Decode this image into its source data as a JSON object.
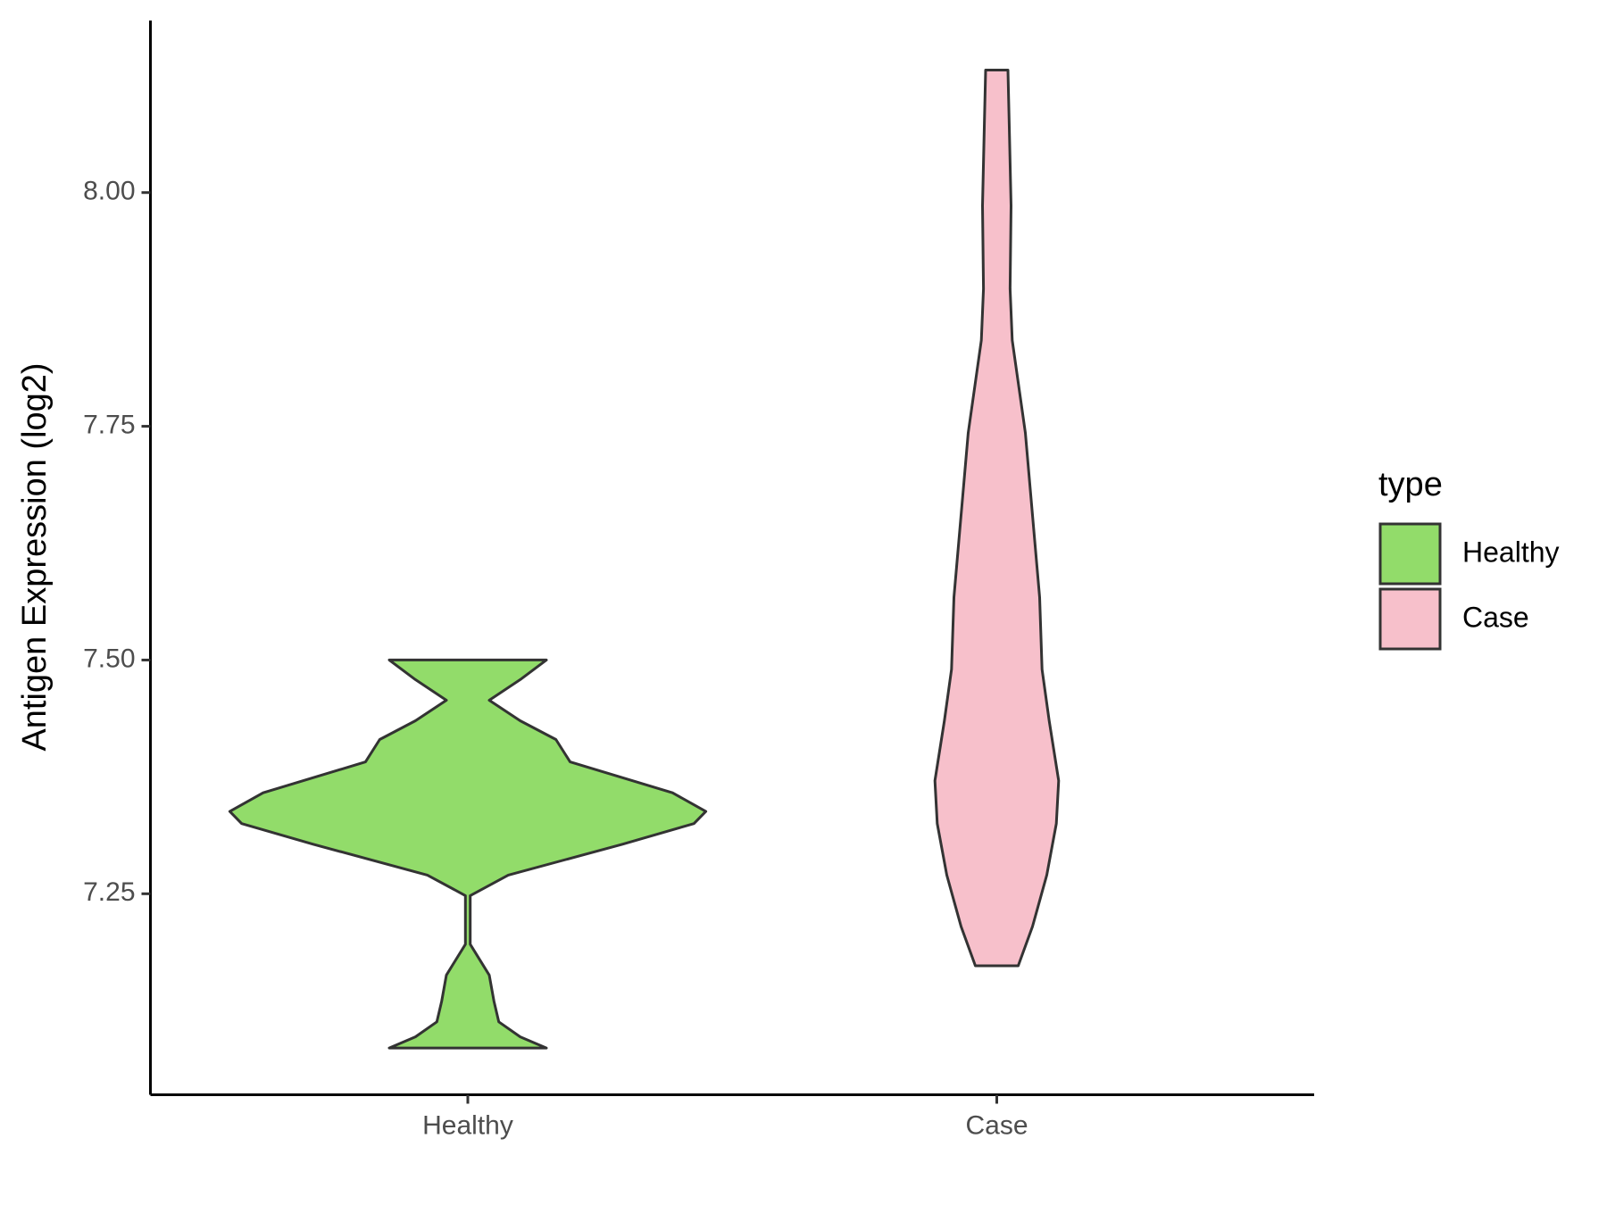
{
  "chart_data": {
    "type": "violin",
    "y_label": "Antigen Expression (log2)",
    "categories": [
      "Healthy",
      "Case"
    ],
    "legend_title": "type",
    "legend": "right",
    "ylim": [
      7.035,
      8.184
    ],
    "yticks": [
      {
        "value": 7.25,
        "label": "7.25"
      },
      {
        "value": 7.5,
        "label": "7.50"
      },
      {
        "value": 7.75,
        "label": "7.75"
      },
      {
        "value": 8,
        "label": "8.00"
      }
    ],
    "series": [
      {
        "name": "Healthy",
        "color": "#92dc6a",
        "y": [
          7.085,
          7.097,
          7.113,
          7.135,
          7.163,
          7.196,
          7.248,
          7.27,
          7.303,
          7.325,
          7.338,
          7.358,
          7.391,
          7.415,
          7.435,
          7.457,
          7.479,
          7.5
        ],
        "width": [
          0.33,
          0.22,
          0.13,
          0.11,
          0.09,
          0.01,
          0.01,
          0.17,
          0.65,
          0.95,
          1,
          0.86,
          0.43,
          0.37,
          0.22,
          0.09,
          0.22,
          0.33
        ]
      },
      {
        "name": "Case",
        "color": "#f7c0cb",
        "y": [
          7.173,
          7.215,
          7.27,
          7.325,
          7.371,
          7.435,
          7.49,
          7.567,
          7.655,
          7.743,
          7.842,
          7.897,
          7.986,
          8.074,
          8.131
        ],
        "width": [
          0.09,
          0.15,
          0.21,
          0.25,
          0.26,
          0.22,
          0.19,
          0.18,
          0.15,
          0.12,
          0.065,
          0.056,
          0.06,
          0.052,
          0.047
        ]
      }
    ]
  }
}
